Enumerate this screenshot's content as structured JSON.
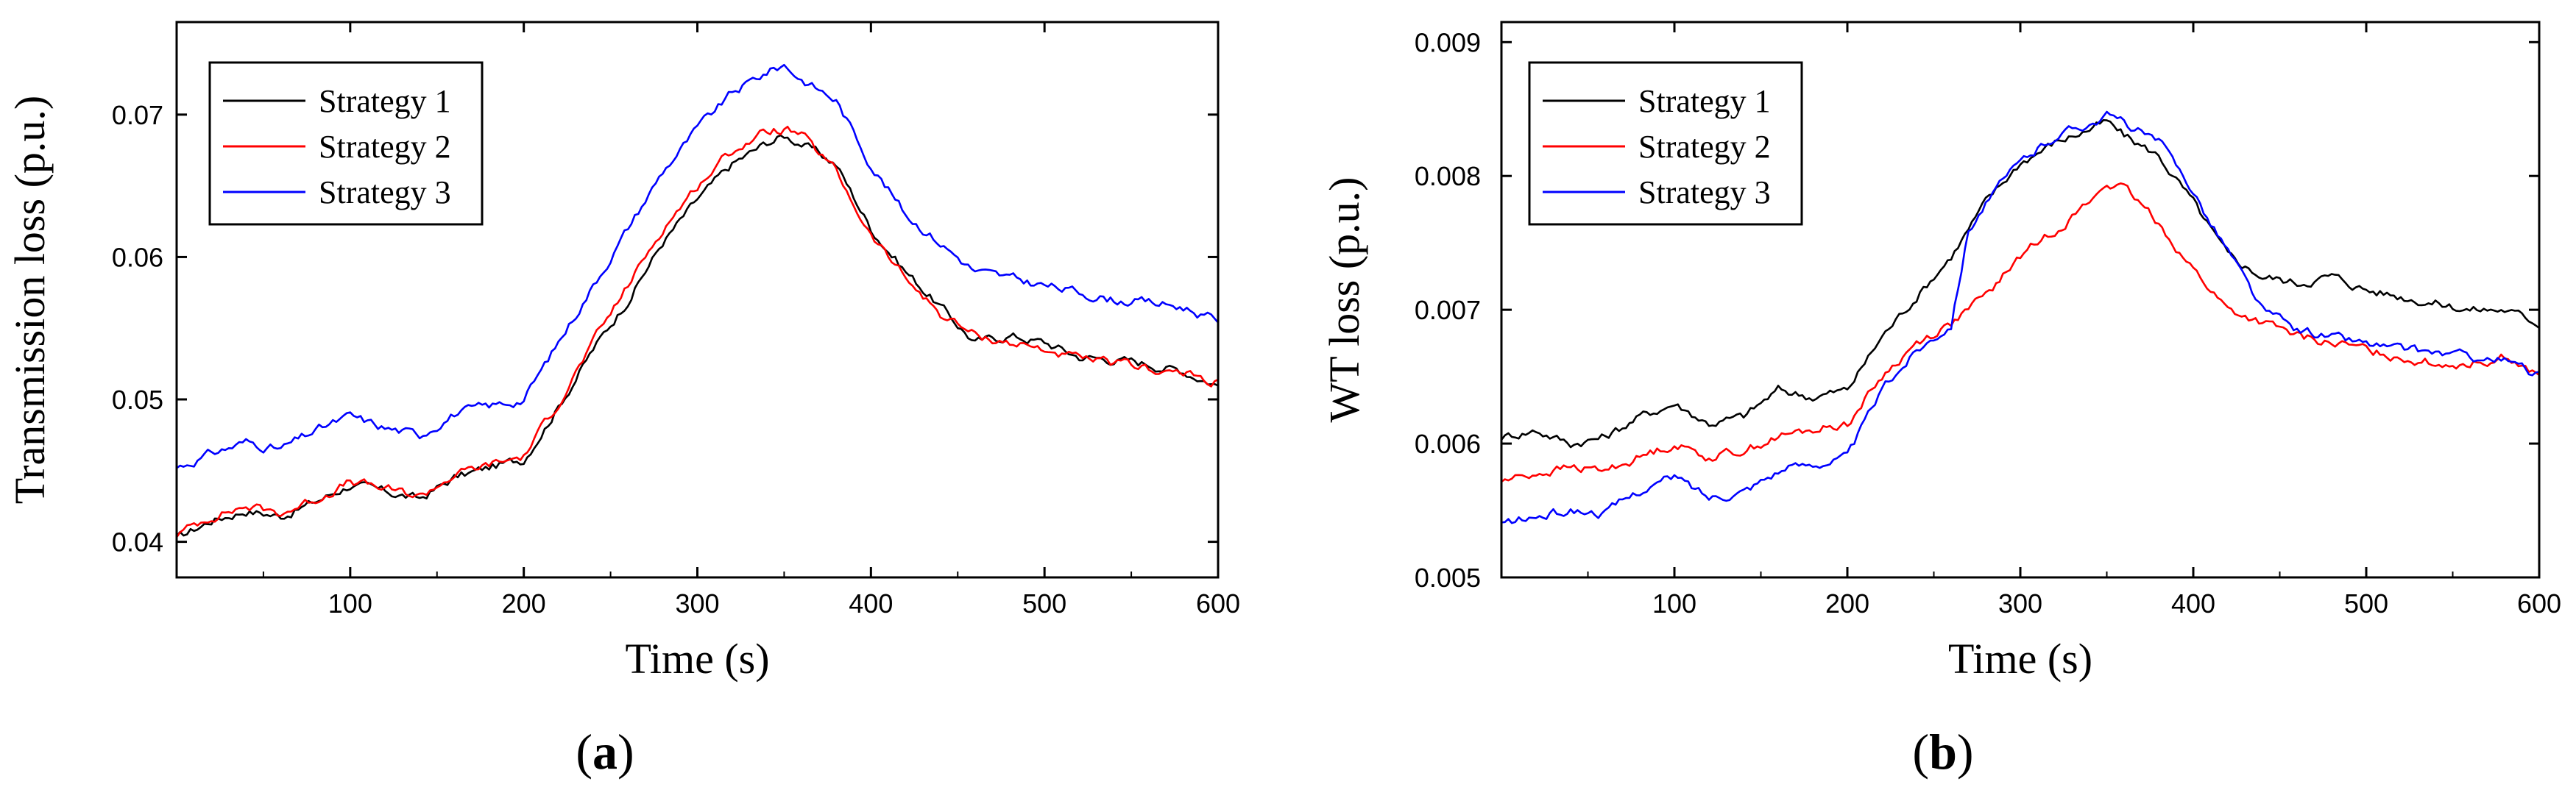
{
  "chart_data": [
    {
      "type": "line",
      "panel_label": {
        "open": "(",
        "letter": "a",
        "close": ")"
      },
      "xlabel": "Time (s)",
      "ylabel": "Transmission loss (p.u.)",
      "xlim": [
        0,
        600
      ],
      "ylim": [
        0.0375,
        0.0765
      ],
      "xticks": [
        100,
        200,
        300,
        400,
        500,
        600
      ],
      "yticks": [
        0.04,
        0.05,
        0.06,
        0.07
      ],
      "yticklabels": [
        "0.04",
        "0.05",
        "0.06",
        "0.07"
      ],
      "legend_position": "top-left",
      "series": [
        {
          "name": "Strategy 1",
          "color": "#000000",
          "x": [
            0,
            20,
            40,
            60,
            80,
            100,
            120,
            140,
            160,
            180,
            200,
            220,
            240,
            260,
            280,
            300,
            320,
            340,
            350,
            360,
            380,
            400,
            420,
            440,
            460,
            480,
            500,
            520,
            540,
            560,
            580,
            600
          ],
          "y": [
            0.0402,
            0.0415,
            0.0422,
            0.0418,
            0.0428,
            0.044,
            0.0435,
            0.043,
            0.0445,
            0.0452,
            0.0458,
            0.0495,
            0.0535,
            0.057,
            0.061,
            0.064,
            0.0665,
            0.068,
            0.0685,
            0.068,
            0.0665,
            0.062,
            0.059,
            0.0565,
            0.054,
            0.0545,
            0.054,
            0.053,
            0.0528,
            0.0525,
            0.052,
            0.051
          ]
        },
        {
          "name": "Strategy 2",
          "color": "#ff0000",
          "x": [
            0,
            20,
            40,
            60,
            80,
            100,
            120,
            140,
            160,
            180,
            200,
            220,
            240,
            260,
            280,
            300,
            320,
            340,
            350,
            360,
            380,
            400,
            420,
            440,
            460,
            480,
            500,
            520,
            540,
            560,
            580,
            600
          ],
          "y": [
            0.0405,
            0.0418,
            0.0425,
            0.042,
            0.043,
            0.0442,
            0.0437,
            0.0432,
            0.0447,
            0.0454,
            0.046,
            0.0498,
            0.054,
            0.058,
            0.062,
            0.065,
            0.0675,
            0.0688,
            0.069,
            0.0685,
            0.066,
            0.0615,
            0.0585,
            0.056,
            0.0545,
            0.054,
            0.0535,
            0.0528,
            0.0525,
            0.0522,
            0.0518,
            0.0512
          ]
        },
        {
          "name": "Strategy 3",
          "color": "#0000ff",
          "x": [
            0,
            20,
            40,
            60,
            80,
            100,
            120,
            140,
            160,
            180,
            200,
            220,
            240,
            260,
            280,
            300,
            320,
            340,
            350,
            360,
            380,
            400,
            420,
            440,
            460,
            480,
            500,
            520,
            540,
            560,
            580,
            600
          ],
          "y": [
            0.0452,
            0.0462,
            0.047,
            0.0465,
            0.0478,
            0.0488,
            0.048,
            0.0475,
            0.049,
            0.0495,
            0.05,
            0.054,
            0.058,
            0.062,
            0.066,
            0.069,
            0.0715,
            0.073,
            0.0735,
            0.0725,
            0.071,
            0.0665,
            0.063,
            0.061,
            0.059,
            0.0585,
            0.058,
            0.0575,
            0.057,
            0.0568,
            0.0565,
            0.0555
          ]
        }
      ]
    },
    {
      "type": "line",
      "panel_label": {
        "open": "(",
        "letter": "b",
        "close": ")"
      },
      "xlabel": "Time (s)",
      "ylabel": "WT loss (p.u.)",
      "xlim": [
        0,
        600
      ],
      "ylim": [
        0.005,
        0.00915
      ],
      "xticks": [
        100,
        200,
        300,
        400,
        500,
        600
      ],
      "yticks": [
        0.005,
        0.006,
        0.007,
        0.008,
        0.009
      ],
      "yticklabels": [
        "0.005",
        "0.006",
        "0.007",
        "0.008",
        "0.009"
      ],
      "legend_position": "top-left",
      "series": [
        {
          "name": "Strategy 1",
          "color": "#000000",
          "x": [
            0,
            20,
            40,
            60,
            80,
            100,
            120,
            140,
            160,
            180,
            200,
            220,
            240,
            260,
            280,
            300,
            320,
            340,
            350,
            360,
            380,
            400,
            420,
            440,
            460,
            480,
            500,
            520,
            540,
            560,
            580,
            600
          ],
          "y": [
            0.00605,
            0.0061,
            0.006,
            0.00605,
            0.0062,
            0.0063,
            0.00615,
            0.0062,
            0.0064,
            0.00635,
            0.0064,
            0.0068,
            0.0071,
            0.0074,
            0.0078,
            0.0081,
            0.00825,
            0.00835,
            0.0084,
            0.0083,
            0.00815,
            0.0078,
            0.0074,
            0.00725,
            0.0072,
            0.00725,
            0.00715,
            0.0071,
            0.00705,
            0.007,
            0.007,
            0.0069
          ]
        },
        {
          "name": "Strategy 2",
          "color": "#ff0000",
          "x": [
            0,
            20,
            40,
            60,
            80,
            100,
            120,
            140,
            160,
            180,
            200,
            220,
            240,
            260,
            280,
            300,
            320,
            340,
            350,
            360,
            380,
            400,
            420,
            440,
            460,
            480,
            500,
            520,
            540,
            560,
            580,
            600
          ],
          "y": [
            0.00572,
            0.00578,
            0.00582,
            0.0058,
            0.0059,
            0.006,
            0.0059,
            0.00595,
            0.00605,
            0.0061,
            0.00615,
            0.0065,
            0.00675,
            0.0069,
            0.0071,
            0.0074,
            0.0076,
            0.0078,
            0.00795,
            0.0079,
            0.00765,
            0.0073,
            0.007,
            0.0069,
            0.0068,
            0.00675,
            0.0067,
            0.00665,
            0.0066,
            0.0066,
            0.00665,
            0.0065
          ]
        },
        {
          "name": "Strategy 3",
          "color": "#0000ff",
          "x": [
            0,
            20,
            40,
            60,
            80,
            100,
            120,
            140,
            160,
            180,
            200,
            220,
            240,
            260,
            270,
            280,
            300,
            320,
            340,
            350,
            360,
            380,
            400,
            410,
            420,
            440,
            460,
            480,
            500,
            520,
            540,
            560,
            580,
            600
          ],
          "y": [
            0.0054,
            0.00545,
            0.0055,
            0.00548,
            0.00565,
            0.00575,
            0.0056,
            0.00565,
            0.0058,
            0.00585,
            0.0059,
            0.0064,
            0.0067,
            0.0069,
            0.0076,
            0.0078,
            0.0081,
            0.0083,
            0.0084,
            0.00845,
            0.0084,
            0.00825,
            0.0079,
            0.00765,
            0.00745,
            0.007,
            0.00685,
            0.0068,
            0.00675,
            0.0067,
            0.00668,
            0.00665,
            0.00662,
            0.0065
          ]
        }
      ]
    }
  ]
}
